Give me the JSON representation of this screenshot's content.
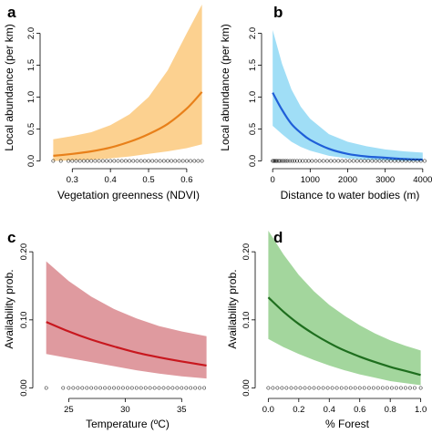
{
  "chart_data": [
    {
      "panel": "a",
      "type": "line",
      "xlabel": "Vegetation greenness (NDVI)",
      "ylabel": "Local abundance (per km)",
      "xlim": [
        0.23,
        0.66
      ],
      "ylim": [
        -0.05,
        2.45
      ],
      "xticks": [
        0.3,
        0.4,
        0.5,
        0.6
      ],
      "xtick_labels": [
        "0.3",
        "0.4",
        "0.5",
        "0.6"
      ],
      "yticks": [
        0.0,
        0.5,
        1.0,
        1.5,
        2.0
      ],
      "ytick_labels": [
        "0.0",
        "0.5",
        "1.0",
        "1.5",
        "2.0"
      ],
      "line_color": "#e8801a",
      "band_color": "#fbc97c",
      "series": [
        {
          "x": [
            0.25,
            0.3,
            0.35,
            0.4,
            0.45,
            0.5,
            0.55,
            0.6,
            0.64
          ],
          "y": [
            0.08,
            0.11,
            0.15,
            0.21,
            0.3,
            0.42,
            0.58,
            0.82,
            1.08
          ],
          "lower": [
            0.0,
            0.01,
            0.02,
            0.04,
            0.07,
            0.11,
            0.15,
            0.2,
            0.26
          ],
          "upper": [
            0.34,
            0.39,
            0.45,
            0.56,
            0.73,
            1.0,
            1.42,
            2.0,
            2.45
          ]
        }
      ],
      "rug": [
        0.25,
        0.27,
        0.29,
        0.3,
        0.31,
        0.32,
        0.33,
        0.34,
        0.35,
        0.36,
        0.37,
        0.38,
        0.39,
        0.4,
        0.41,
        0.42,
        0.43,
        0.44,
        0.45,
        0.46,
        0.47,
        0.48,
        0.49,
        0.5,
        0.51,
        0.52,
        0.53,
        0.54,
        0.55,
        0.56,
        0.57,
        0.58,
        0.59,
        0.6,
        0.61,
        0.62,
        0.63,
        0.64
      ]
    },
    {
      "panel": "b",
      "type": "line",
      "xlabel": "Distance to water bodies (m)",
      "ylabel": "Local abundance (per km)",
      "xlim": [
        -150,
        4150
      ],
      "ylim": [
        -0.05,
        2.45
      ],
      "xticks": [
        0,
        1000,
        2000,
        3000,
        4000
      ],
      "xtick_labels": [
        "0",
        "1000",
        "2000",
        "3000",
        "4000"
      ],
      "yticks": [
        0.0,
        0.5,
        1.0,
        1.5,
        2.0
      ],
      "ytick_labels": [
        "0.0",
        "0.5",
        "1.0",
        "1.5",
        "2.0"
      ],
      "line_color": "#1f5fd8",
      "band_color": "#8fd8f5",
      "series": [
        {
          "x": [
            0,
            250,
            500,
            750,
            1000,
            1500,
            2000,
            2500,
            3000,
            3500,
            4000
          ],
          "y": [
            1.07,
            0.8,
            0.58,
            0.44,
            0.33,
            0.19,
            0.11,
            0.07,
            0.05,
            0.03,
            0.02
          ],
          "lower": [
            0.55,
            0.42,
            0.3,
            0.22,
            0.16,
            0.08,
            0.04,
            0.02,
            0.01,
            0.0,
            0.0
          ],
          "upper": [
            2.05,
            1.52,
            1.12,
            0.85,
            0.66,
            0.42,
            0.3,
            0.23,
            0.18,
            0.15,
            0.13
          ]
        }
      ],
      "rug": [
        0,
        30,
        60,
        90,
        120,
        160,
        200,
        250,
        300,
        350,
        400,
        460,
        520,
        580,
        650,
        720,
        800,
        880,
        960,
        1050,
        1150,
        1250,
        1350,
        1450,
        1550,
        1650,
        1750,
        1850,
        1950,
        2050,
        2150,
        2250,
        2350,
        2450,
        2550,
        2650,
        2750,
        2850,
        2950,
        3050,
        3150,
        3250,
        3350,
        3450,
        3550,
        3650,
        3750,
        3850,
        3950,
        4050
      ]
    },
    {
      "panel": "c",
      "type": "line",
      "xlabel": "Temperature (ºC)",
      "ylabel": "Availability prob.",
      "xlim": [
        22.3,
        37.8
      ],
      "ylim": [
        -0.006,
        0.235
      ],
      "xticks": [
        25,
        30,
        35
      ],
      "xtick_labels": [
        "25",
        "30",
        "35"
      ],
      "yticks": [
        0.0,
        0.1,
        0.2
      ],
      "ytick_labels": [
        "0.00",
        "0.10",
        "0.20"
      ],
      "line_color": "#c8171e",
      "band_color": "#d9888e",
      "series": [
        {
          "x": [
            23,
            25,
            27,
            29,
            31,
            33,
            35,
            37.2
          ],
          "y": [
            0.097,
            0.083,
            0.071,
            0.061,
            0.052,
            0.045,
            0.039,
            0.033
          ],
          "lower": [
            0.05,
            0.044,
            0.038,
            0.032,
            0.026,
            0.021,
            0.017,
            0.014
          ],
          "upper": [
            0.186,
            0.157,
            0.134,
            0.116,
            0.102,
            0.091,
            0.083,
            0.076
          ]
        }
      ],
      "rug": [
        23.0,
        24.5,
        25.0,
        25.4,
        25.8,
        26.2,
        26.6,
        27.0,
        27.4,
        27.8,
        28.2,
        28.6,
        29.0,
        29.4,
        29.8,
        30.2,
        30.6,
        31.0,
        31.4,
        31.8,
        32.2,
        32.6,
        33.0,
        33.4,
        33.8,
        34.2,
        34.6,
        35.0,
        35.4,
        35.8,
        36.2,
        36.6,
        37.0
      ]
    },
    {
      "panel": "d",
      "type": "line",
      "xlabel": "% Forest",
      "ylabel": "Availability prob.",
      "xlim": [
        -0.05,
        1.05
      ],
      "ylim": [
        -0.006,
        0.235
      ],
      "xticks": [
        0.0,
        0.2,
        0.4,
        0.6,
        0.8,
        1.0
      ],
      "xtick_labels": [
        "0.0",
        "0.2",
        "0.4",
        "0.6",
        "0.8",
        "1.0"
      ],
      "yticks": [
        0.0,
        0.1,
        0.2
      ],
      "ytick_labels": [
        "0.00",
        "0.10",
        "0.20"
      ],
      "line_color": "#1e6e1e",
      "band_color": "#93cf8c",
      "series": [
        {
          "x": [
            0.0,
            0.1,
            0.2,
            0.3,
            0.4,
            0.5,
            0.6,
            0.7,
            0.8,
            0.9,
            1.0
          ],
          "y": [
            0.133,
            0.112,
            0.094,
            0.079,
            0.066,
            0.055,
            0.046,
            0.038,
            0.031,
            0.025,
            0.019
          ],
          "lower": [
            0.072,
            0.06,
            0.05,
            0.041,
            0.033,
            0.026,
            0.02,
            0.015,
            0.01,
            0.007,
            0.004
          ],
          "upper": [
            0.231,
            0.196,
            0.166,
            0.142,
            0.122,
            0.106,
            0.092,
            0.08,
            0.07,
            0.062,
            0.055
          ]
        }
      ],
      "rug": [
        0.0,
        0.03,
        0.06,
        0.09,
        0.12,
        0.15,
        0.18,
        0.21,
        0.24,
        0.27,
        0.3,
        0.33,
        0.36,
        0.39,
        0.42,
        0.45,
        0.48,
        0.51,
        0.54,
        0.57,
        0.6,
        0.63,
        0.66,
        0.69,
        0.72,
        0.75,
        0.78,
        0.81,
        0.84,
        0.87,
        0.9,
        0.93,
        0.96,
        1.0
      ]
    }
  ]
}
